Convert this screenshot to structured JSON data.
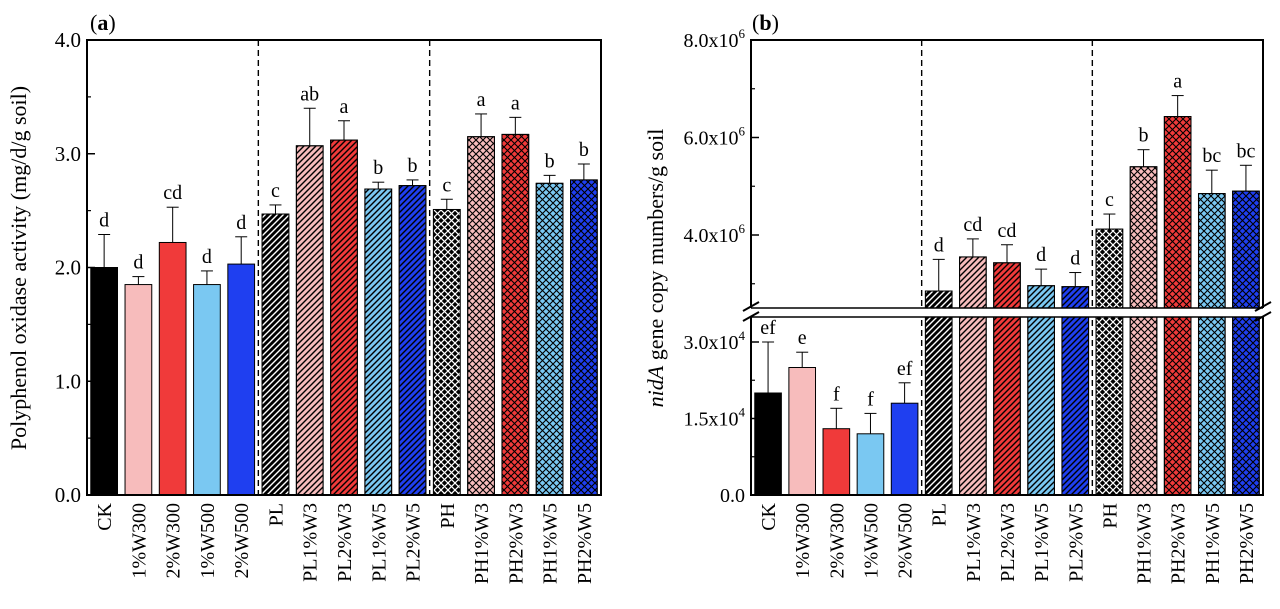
{
  "colors": {
    "black": "#000000",
    "light_pink": "#f7bcbc",
    "red": "#f03a3a",
    "light_blue": "#7ac8f2",
    "blue": "#1f3ff0",
    "axis": "#000000"
  },
  "chart_data": [
    {
      "type": "bar",
      "panel_label": "(a)",
      "ylabel": "Polyphenol oxidase activity (mg/d/g soil)",
      "ylim": [
        0,
        4
      ],
      "yticks": [
        "0.0",
        "1.0",
        "2.0",
        "3.0",
        "4.0"
      ],
      "categories": [
        "CK",
        "1%W300",
        "2%W300",
        "1%W500",
        "2%W500",
        "PL",
        "PL1%W3",
        "PL2%W3",
        "PL1%W5",
        "PL2%W5",
        "PH",
        "PH1%W3",
        "PH2%W3",
        "PH1%W5",
        "PH2%W5"
      ],
      "values": [
        2.0,
        1.85,
        2.22,
        1.85,
        2.03,
        2.47,
        3.07,
        3.12,
        2.69,
        2.72,
        2.51,
        3.15,
        3.17,
        2.74,
        2.77
      ],
      "errors": [
        0.29,
        0.07,
        0.31,
        0.12,
        0.24,
        0.08,
        0.33,
        0.17,
        0.06,
        0.05,
        0.09,
        0.2,
        0.15,
        0.07,
        0.14
      ],
      "labels": [
        "d",
        "d",
        "cd",
        "d",
        "d",
        "c",
        "ab",
        "a",
        "b",
        "b",
        "c",
        "a",
        "a",
        "b",
        "b"
      ],
      "fill_colors": [
        "black",
        "light_pink",
        "red",
        "light_blue",
        "blue",
        "black",
        "light_pink",
        "red",
        "light_blue",
        "blue",
        "black",
        "light_pink",
        "red",
        "light_blue",
        "blue"
      ],
      "patterns": [
        "none",
        "none",
        "none",
        "none",
        "none",
        "diag",
        "diag",
        "diag",
        "diag",
        "diag",
        "cross",
        "cross",
        "cross",
        "cross",
        "cross"
      ],
      "group_dividers_after": [
        4,
        9
      ],
      "grid": false
    },
    {
      "type": "bar",
      "panel_label": "(b)",
      "ylabel_italic": "nidA",
      "ylabel": " gene copy mumbers/g soil",
      "axis_break": true,
      "lower_ylim": [
        0,
        30000
      ],
      "lower_yticks": [
        {
          "value": 0,
          "label": "0.0"
        },
        {
          "value": 15000,
          "label": "1.5x10",
          "exp": "4"
        },
        {
          "value": 30000,
          "label": "3.0x10",
          "exp": "4"
        }
      ],
      "upper_ylim": [
        2700000,
        8000000
      ],
      "upper_yticks": [
        {
          "value": 4000000,
          "label": "4.0x10",
          "exp": "6"
        },
        {
          "value": 6000000,
          "label": "6.0x10",
          "exp": "6"
        },
        {
          "value": 8000000,
          "label": "8.0x10",
          "exp": "6"
        }
      ],
      "categories": [
        "CK",
        "1%W300",
        "2%W300",
        "1%W500",
        "2%W500",
        "PL",
        "PL1%W3",
        "PL2%W3",
        "PL1%W5",
        "PL2%W5",
        "PH",
        "PH1%W3",
        "PH2%W3",
        "PH1%W5",
        "PH2%W5"
      ],
      "values": [
        20000,
        25000,
        13000,
        12000,
        18000,
        2850000,
        3550000,
        3430000,
        2960000,
        2940000,
        4120000,
        5400000,
        6430000,
        4850000,
        4900000
      ],
      "errors": [
        10000,
        3000,
        4000,
        4000,
        4000,
        650000,
        370000,
        370000,
        340000,
        290000,
        310000,
        350000,
        430000,
        480000,
        530000
      ],
      "labels": [
        "ef",
        "e",
        "f",
        "f",
        "ef",
        "d",
        "cd",
        "cd",
        "d",
        "d",
        "c",
        "b",
        "a",
        "bc",
        "bc"
      ],
      "fill_colors": [
        "black",
        "light_pink",
        "red",
        "light_blue",
        "blue",
        "black",
        "light_pink",
        "red",
        "light_blue",
        "blue",
        "black",
        "light_pink",
        "red",
        "light_blue",
        "blue"
      ],
      "patterns": [
        "none",
        "none",
        "none",
        "none",
        "none",
        "diag",
        "diag",
        "diag",
        "diag",
        "diag",
        "cross",
        "cross",
        "cross",
        "cross",
        "cross"
      ],
      "group_dividers_after": [
        4,
        9
      ],
      "grid": false
    }
  ]
}
